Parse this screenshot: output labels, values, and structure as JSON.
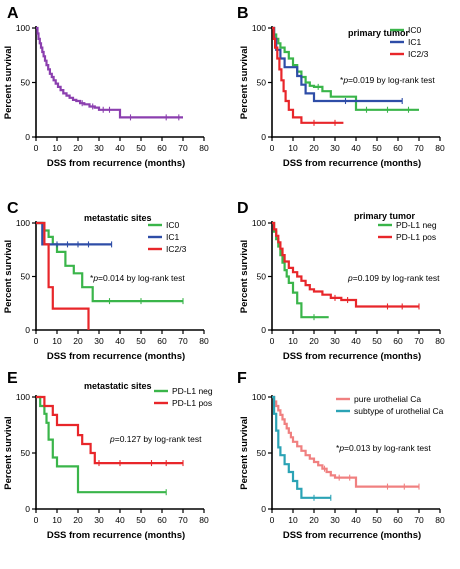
{
  "chart_data": [
    {
      "panel": "A",
      "type": "line",
      "subtype": "kaplan-meier",
      "title": "",
      "xlabel": "DSS from recurrence (months)",
      "ylabel": "Percent survival",
      "xlim": [
        0,
        80
      ],
      "ylim": [
        0,
        100
      ],
      "xticks": [
        0,
        10,
        20,
        30,
        40,
        50,
        60,
        70,
        80
      ],
      "yticks": [
        0,
        50,
        100
      ],
      "annotation": "",
      "legend_position": "none",
      "series": [
        {
          "name": "",
          "color": "#8B3FAF",
          "x": [
            0,
            0.7,
            1.2,
            1.8,
            2.4,
            3.0,
            3.6,
            4.3,
            5.0,
            5.8,
            6.6,
            7.5,
            8.4,
            9.4,
            10.5,
            11.7,
            13.0,
            14.5,
            16.0,
            17.6,
            19.2,
            21.0,
            23.0,
            25.5,
            28.0,
            30.0,
            40.0,
            70.0
          ],
          "y": [
            100,
            95,
            90,
            86,
            82,
            78,
            74,
            70,
            66,
            62,
            58,
            55,
            52,
            49,
            46,
            43,
            40,
            38,
            36,
            34,
            33,
            31,
            30,
            28,
            27,
            25,
            18,
            18
          ],
          "censor_x": [
            22,
            27,
            32,
            35,
            45,
            62,
            68
          ]
        }
      ]
    },
    {
      "panel": "B",
      "type": "line",
      "subtype": "kaplan-meier",
      "title": "primary tumor",
      "xlabel": "DSS from recurrence (months)",
      "ylabel": "Percent survival",
      "xlim": [
        0,
        80
      ],
      "ylim": [
        0,
        100
      ],
      "xticks": [
        0,
        10,
        20,
        30,
        40,
        50,
        60,
        70,
        80
      ],
      "yticks": [
        0,
        50,
        100
      ],
      "annotation": "*p=0.019 by log-rank test",
      "legend_position": "top-right",
      "series": [
        {
          "name": "IC0",
          "color": "#3AB54A",
          "x": [
            0,
            1,
            2,
            3,
            4,
            6,
            8,
            10,
            12,
            14,
            16,
            18,
            20,
            24,
            28,
            40,
            50,
            70
          ],
          "y": [
            100,
            94,
            90,
            86,
            82,
            78,
            72,
            66,
            60,
            55,
            50,
            47,
            46,
            42,
            37,
            25,
            25,
            25
          ],
          "censor_x": [
            22,
            45,
            55,
            65
          ]
        },
        {
          "name": "IC1",
          "color": "#2E4DA7",
          "x": [
            0,
            1,
            2,
            4,
            6,
            8,
            12,
            14,
            16,
            20,
            30,
            62
          ],
          "y": [
            100,
            90,
            80,
            72,
            64,
            64,
            56,
            48,
            40,
            33,
            33,
            33
          ],
          "censor_x": [
            35,
            62
          ]
        },
        {
          "name": "IC2/3",
          "color": "#E8262A",
          "x": [
            0,
            0.8,
            1.5,
            2.5,
            3.5,
            4.5,
            5.5,
            6.5,
            8,
            10,
            14,
            34
          ],
          "y": [
            100,
            90,
            82,
            72,
            62,
            52,
            42,
            33,
            25,
            18,
            13,
            13
          ],
          "censor_x": [
            20,
            30
          ]
        }
      ]
    },
    {
      "panel": "C",
      "type": "line",
      "subtype": "kaplan-meier",
      "title": "metastatic sites",
      "xlabel": "DSS from recurrence (months)",
      "ylabel": "Percent survival",
      "xlim": [
        0,
        80
      ],
      "ylim": [
        0,
        100
      ],
      "xticks": [
        0,
        10,
        20,
        30,
        40,
        50,
        60,
        70,
        80
      ],
      "yticks": [
        0,
        50,
        100
      ],
      "annotation": "*p=0.014 by log-rank test",
      "legend_position": "top-right",
      "series": [
        {
          "name": "IC0",
          "color": "#3AB54A",
          "x": [
            0,
            4,
            6,
            8,
            10,
            14,
            18,
            22,
            27,
            70
          ],
          "y": [
            100,
            93,
            87,
            80,
            73,
            60,
            53,
            40,
            27,
            27
          ],
          "censor_x": [
            35,
            50,
            70
          ]
        },
        {
          "name": "IC1",
          "color": "#2E4DA7",
          "x": [
            0,
            3,
            36
          ],
          "y": [
            100,
            80,
            80
          ],
          "censor_x": [
            10,
            15,
            20,
            25,
            36
          ]
        },
        {
          "name": "IC2/3",
          "color": "#E8262A",
          "x": [
            0,
            4,
            6,
            8,
            24,
            25
          ],
          "y": [
            100,
            80,
            40,
            20,
            20,
            0
          ],
          "censor_x": []
        }
      ]
    },
    {
      "panel": "D",
      "type": "line",
      "subtype": "kaplan-meier",
      "title": "primary tumor",
      "xlabel": "DSS from recurrence (months)",
      "ylabel": "Percent survival",
      "xlim": [
        0,
        80
      ],
      "ylim": [
        0,
        100
      ],
      "xticks": [
        0,
        10,
        20,
        30,
        40,
        50,
        60,
        70,
        80
      ],
      "yticks": [
        0,
        50,
        100
      ],
      "annotation": "p=0.109 by log-rank test",
      "legend_position": "top-right",
      "series": [
        {
          "name": "PD-L1 neg",
          "color": "#3AB54A",
          "x": [
            0,
            1,
            2,
            3,
            4,
            5,
            6,
            7,
            8,
            10,
            12,
            14,
            27
          ],
          "y": [
            100,
            92,
            85,
            78,
            70,
            63,
            56,
            50,
            44,
            35,
            25,
            12,
            12
          ],
          "censor_x": [
            20
          ]
        },
        {
          "name": "PD-L1 pos",
          "color": "#E8262A",
          "x": [
            0,
            1,
            2,
            3,
            4,
            5,
            6,
            8,
            10,
            12,
            14,
            16,
            18,
            20,
            24,
            28,
            33,
            40,
            70
          ],
          "y": [
            100,
            94,
            88,
            82,
            76,
            70,
            64,
            58,
            54,
            50,
            46,
            42,
            38,
            36,
            33,
            30,
            28,
            22,
            22
          ],
          "censor_x": [
            30,
            36,
            55,
            62,
            70
          ]
        }
      ]
    },
    {
      "panel": "E",
      "type": "line",
      "subtype": "kaplan-meier",
      "title": "metastatic sites",
      "xlabel": "DSS from recurrence (months)",
      "ylabel": "Percent survival",
      "xlim": [
        0,
        80
      ],
      "ylim": [
        0,
        100
      ],
      "xticks": [
        0,
        10,
        20,
        30,
        40,
        50,
        60,
        70,
        80
      ],
      "yticks": [
        0,
        50,
        100
      ],
      "annotation": "p=0.127 by log-rank test",
      "legend_position": "top-right",
      "series": [
        {
          "name": "PD-L1 neg",
          "color": "#3AB54A",
          "x": [
            0,
            2,
            4,
            5,
            6,
            8,
            10,
            20,
            62
          ],
          "y": [
            100,
            92,
            85,
            77,
            62,
            46,
            38,
            15,
            15
          ],
          "censor_x": [
            62
          ]
        },
        {
          "name": "PD-L1 pos",
          "color": "#E8262A",
          "x": [
            0,
            4,
            8,
            10,
            14,
            20,
            22,
            26,
            28,
            70
          ],
          "y": [
            100,
            92,
            84,
            75,
            75,
            66,
            58,
            50,
            41,
            41
          ],
          "censor_x": [
            30,
            40,
            55,
            62,
            70
          ]
        }
      ]
    },
    {
      "panel": "F",
      "type": "line",
      "subtype": "kaplan-meier",
      "title": "",
      "xlabel": "DSS from recurrence (months)",
      "ylabel": "Percent survival",
      "xlim": [
        0,
        80
      ],
      "ylim": [
        0,
        100
      ],
      "xticks": [
        0,
        10,
        20,
        30,
        40,
        50,
        60,
        70,
        80
      ],
      "yticks": [
        0,
        50,
        100
      ],
      "annotation": "*p=0.013 by log-rank test",
      "legend_position": "top-right",
      "series": [
        {
          "name": "pure urothelial Ca",
          "color": "#F08080",
          "x": [
            0,
            1,
            2,
            3,
            4,
            5,
            6,
            7,
            8,
            9,
            10,
            12,
            14,
            16,
            18,
            20,
            22,
            24,
            26,
            28,
            30,
            40,
            70
          ],
          "y": [
            100,
            96,
            92,
            88,
            84,
            80,
            76,
            72,
            68,
            64,
            60,
            56,
            52,
            48,
            45,
            42,
            39,
            36,
            33,
            30,
            28,
            20,
            20
          ],
          "censor_x": [
            25,
            32,
            37,
            55,
            63,
            70
          ]
        },
        {
          "name": "subtype of urothelial Ca",
          "color": "#2BA3B5",
          "x": [
            0,
            1,
            2,
            3,
            4,
            6,
            8,
            10,
            12,
            14,
            28
          ],
          "y": [
            100,
            85,
            70,
            55,
            48,
            40,
            33,
            25,
            18,
            10,
            10
          ],
          "censor_x": [
            20,
            28
          ]
        }
      ]
    }
  ]
}
